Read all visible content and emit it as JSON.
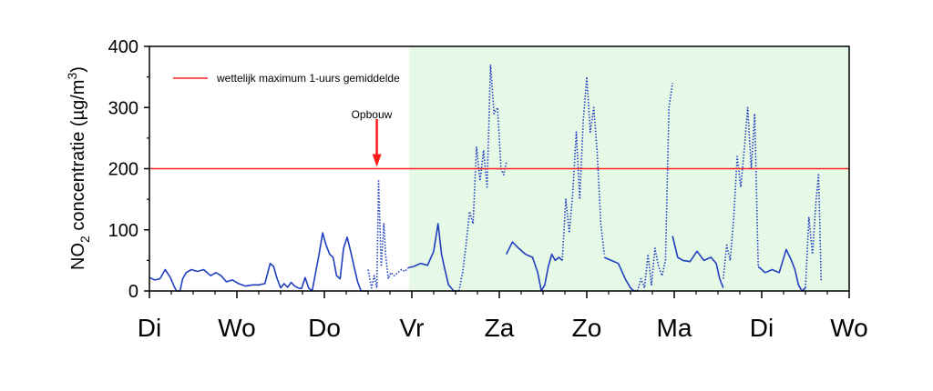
{
  "chart_data": {
    "type": "line",
    "title": "",
    "xlabel": "",
    "ylabel_parts": {
      "pre": "NO",
      "sub": "2",
      "mid": " concentratie (",
      "mu": "µg/m",
      "sup": "3",
      "post": ")"
    },
    "ylim": [
      0,
      400
    ],
    "yticks": [
      0,
      100,
      200,
      300,
      400
    ],
    "xlim": [
      0,
      8
    ],
    "xticks": [
      {
        "x": 0,
        "label": "Di"
      },
      {
        "x": 1,
        "label": "Wo"
      },
      {
        "x": 2,
        "label": "Do"
      },
      {
        "x": 3,
        "label": "Vr"
      },
      {
        "x": 4,
        "label": "Za"
      },
      {
        "x": 5,
        "label": "Zo"
      },
      {
        "x": 6,
        "label": "Ma"
      },
      {
        "x": 7,
        "label": "Di"
      },
      {
        "x": 8,
        "label": "Wo"
      }
    ],
    "highlight_region": {
      "x_start": 2.97,
      "x_end": 8,
      "color": "#e6f9e6"
    },
    "threshold": {
      "y": 200,
      "color": "#ff2020",
      "label": "wettelijk maximum 1-uurs gemiddelde"
    },
    "legend_position": "top-left",
    "annotation": {
      "text": "Opbouw",
      "x": 2.6,
      "y": 200,
      "color": "#ff1a1a"
    },
    "series_color": "#1f3fbf",
    "series": [
      {
        "name": "",
        "style": "solid",
        "x": [
          0.0,
          0.06,
          0.12,
          0.18,
          0.24,
          0.28,
          0.31,
          0.35,
          0.38,
          0.42,
          0.48,
          0.55,
          0.62,
          0.7,
          0.76,
          0.82,
          0.88,
          0.95,
          1.02,
          1.1,
          1.18,
          1.25,
          1.32,
          1.38,
          1.42,
          1.46,
          1.5,
          1.54,
          1.58,
          1.62,
          1.66,
          1.7,
          1.74,
          1.78,
          1.82,
          1.86,
          1.9,
          1.94,
          1.98,
          2.02,
          2.06,
          2.1,
          2.14,
          2.18,
          2.22,
          2.26,
          2.3,
          2.34,
          2.38,
          2.42,
          2.46,
          2.5
        ],
        "y": [
          22,
          18,
          20,
          35,
          22,
          8,
          0,
          0,
          20,
          30,
          35,
          32,
          35,
          25,
          30,
          25,
          15,
          18,
          12,
          8,
          10,
          10,
          12,
          45,
          40,
          20,
          5,
          12,
          6,
          14,
          8,
          5,
          4,
          22,
          5,
          0,
          30,
          60,
          95,
          75,
          60,
          55,
          25,
          20,
          70,
          88,
          65,
          40,
          15,
          0,
          0,
          0
        ]
      },
      {
        "name": "",
        "style": "dotted",
        "x": [
          2.5,
          2.54,
          2.57,
          2.6,
          2.62,
          2.65,
          2.68,
          2.7,
          2.73,
          2.76,
          2.8,
          2.84,
          2.88,
          2.92,
          2.96
        ],
        "y": [
          35,
          5,
          25,
          5,
          180,
          40,
          110,
          60,
          20,
          30,
          25,
          30,
          35,
          32,
          38
        ],
        "breakBefore": true
      },
      {
        "name": "",
        "style": "solid",
        "x": [
          2.96,
          3.02,
          3.1,
          3.18,
          3.25,
          3.3,
          3.34,
          3.37,
          3.42,
          3.48,
          3.54
        ],
        "y": [
          38,
          40,
          45,
          42,
          65,
          110,
          60,
          40,
          10,
          0,
          0
        ]
      },
      {
        "name": "",
        "style": "dotted",
        "x": [
          3.54,
          3.58,
          3.62,
          3.66,
          3.7,
          3.74,
          3.78,
          3.82,
          3.86,
          3.9,
          3.94,
          3.98,
          4.02,
          4.05,
          4.08
        ],
        "y": [
          0,
          30,
          75,
          130,
          110,
          235,
          180,
          230,
          170,
          370,
          290,
          300,
          200,
          190,
          210
        ],
        "breakBefore": true
      },
      {
        "name": "",
        "style": "solid",
        "x": [
          4.08,
          4.15,
          4.22,
          4.3,
          4.38,
          4.44,
          4.48,
          4.52,
          4.56,
          4.6,
          4.64,
          4.68,
          4.72
        ],
        "y": [
          60,
          80,
          70,
          60,
          55,
          30,
          0,
          10,
          40,
          60,
          50,
          55,
          50
        ],
        "breakBefore": true
      },
      {
        "name": "",
        "style": "dotted",
        "x": [
          4.72,
          4.76,
          4.8,
          4.84,
          4.88,
          4.92,
          4.96,
          5.0,
          5.04,
          5.08,
          5.12,
          5.16,
          5.2
        ],
        "y": [
          50,
          150,
          95,
          160,
          260,
          150,
          280,
          350,
          260,
          300,
          225,
          110,
          60
        ],
        "breakBefore": true
      },
      {
        "name": "",
        "style": "solid",
        "x": [
          5.2,
          5.28,
          5.36,
          5.44,
          5.5,
          5.54,
          5.58
        ],
        "y": [
          55,
          50,
          45,
          20,
          5,
          0,
          0
        ]
      },
      {
        "name": "",
        "style": "dotted",
        "x": [
          5.58,
          5.62,
          5.66,
          5.7,
          5.74,
          5.78,
          5.82,
          5.86,
          5.9,
          5.94,
          5.98
        ],
        "y": [
          0,
          20,
          5,
          60,
          10,
          70,
          40,
          25,
          50,
          300,
          340
        ],
        "breakBefore": true
      },
      {
        "name": "",
        "style": "solid",
        "x": [
          5.98,
          6.04,
          6.1,
          6.18,
          6.26,
          6.34,
          6.42,
          6.48,
          6.52,
          6.56
        ],
        "y": [
          90,
          55,
          50,
          48,
          65,
          50,
          55,
          45,
          20,
          5
        ]
      },
      {
        "name": "",
        "style": "dotted",
        "x": [
          6.56,
          6.6,
          6.64,
          6.68,
          6.72,
          6.76,
          6.8,
          6.84,
          6.88,
          6.92,
          6.96
        ],
        "y": [
          20,
          75,
          50,
          120,
          220,
          170,
          230,
          300,
          200,
          290,
          40
        ],
        "breakBefore": true
      },
      {
        "name": "",
        "style": "solid",
        "x": [
          6.96,
          7.04,
          7.12,
          7.2,
          7.28,
          7.34,
          7.38,
          7.42,
          7.46,
          7.5
        ],
        "y": [
          40,
          30,
          35,
          30,
          68,
          50,
          35,
          10,
          0,
          5
        ]
      },
      {
        "name": "",
        "style": "dotted",
        "x": [
          7.5,
          7.54,
          7.58,
          7.62,
          7.65,
          7.68
        ],
        "y": [
          5,
          120,
          60,
          145,
          190,
          15
        ],
        "breakBefore": true
      }
    ]
  }
}
